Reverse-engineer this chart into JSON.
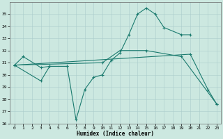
{
  "xlabel": "Humidex (Indice chaleur)",
  "background_color": "#cce8e0",
  "grid_color": "#aacccc",
  "line_color": "#1a7a6e",
  "line1_x": [
    0,
    1,
    3,
    4,
    6
  ],
  "line1_y": [
    30.8,
    31.5,
    30.6,
    30.7,
    30.7
  ],
  "line2_x": [
    0,
    3,
    4,
    6,
    7,
    8,
    9,
    10,
    11,
    12,
    13,
    14,
    15,
    16,
    17,
    19,
    20
  ],
  "line2_y": [
    30.8,
    29.5,
    30.7,
    30.7,
    26.3,
    28.8,
    29.8,
    30.0,
    31.2,
    31.8,
    33.3,
    35.0,
    35.5,
    35.0,
    33.9,
    33.3,
    33.3
  ],
  "line3_x": [
    0,
    10,
    12,
    15,
    19,
    23
  ],
  "line3_y": [
    30.8,
    31.0,
    32.0,
    32.0,
    31.5,
    27.6
  ],
  "line4_x": [
    0,
    20,
    22,
    23
  ],
  "line4_y": [
    30.8,
    31.7,
    28.8,
    27.6
  ],
  "ylim": [
    26,
    36
  ],
  "xlim": [
    -0.5,
    23.5
  ],
  "yticks": [
    26,
    27,
    28,
    29,
    30,
    31,
    32,
    33,
    34,
    35
  ],
  "xticks": [
    0,
    1,
    2,
    3,
    4,
    5,
    6,
    7,
    8,
    9,
    10,
    11,
    12,
    13,
    14,
    15,
    16,
    17,
    18,
    19,
    20,
    21,
    22,
    23
  ]
}
